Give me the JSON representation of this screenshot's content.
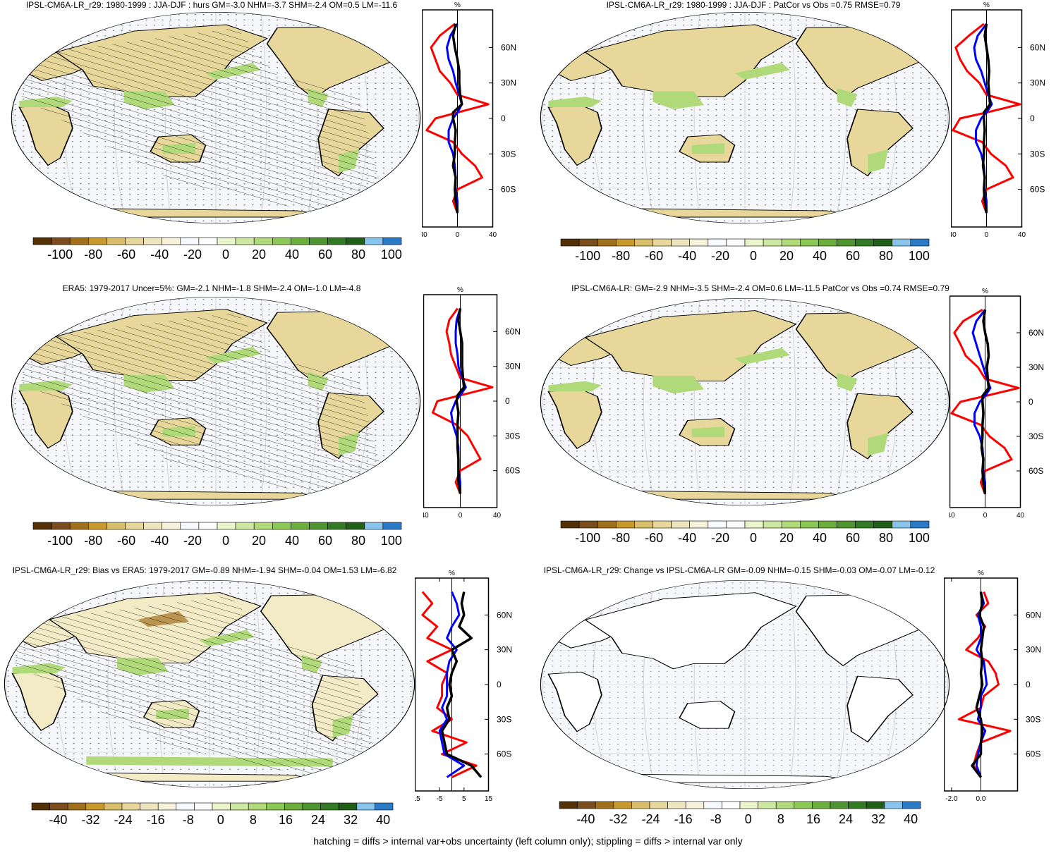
{
  "colors": {
    "palette": [
      "#543005",
      "#7a4e1c",
      "#a0701d",
      "#c89a2e",
      "#d9bf6b",
      "#e7d79a",
      "#efe6bf",
      "#f6f1da",
      "#f7f8fd",
      "#ffffff",
      "#eaf5cc",
      "#cde8a0",
      "#b0d97a",
      "#8cc856",
      "#6aae3c",
      "#4e9430",
      "#327a24",
      "#1f5f18",
      "#87c4ee",
      "#2b7bc8"
    ],
    "land_dry": "#e7d79a",
    "land_wet": "#b0d97a",
    "ocean": "#f6f7fb",
    "zonal_red": "#ff0000",
    "zonal_blue": "#0000ff",
    "zonal_black": "#000000"
  },
  "footer": "hatching = diffs > internal var+obs uncertainty (left column only); stippling = diffs > internal var only",
  "panels": [
    {
      "title": "IPSL-CM6A-LR_r29: 1980-1999 : JJA-DJF : hurs GM=-3.0 NHM=-3.7 SHM=-2.4 OM=0.5 LM=-11.6",
      "cbar_labels": [
        "-100",
        "-80",
        "-60",
        "-40",
        "-20",
        "0",
        "20",
        "40",
        "60",
        "80",
        "100"
      ],
      "side_x_ticks": [
        "-40",
        "0",
        "40"
      ],
      "side_unit": "%",
      "lat_labels": [
        "60N",
        "30N",
        "0",
        "30S",
        "60S"
      ],
      "hatching": true
    },
    {
      "title": "IPSL-CM6A-LR_r29: 1980-1999 : JJA-DJF : PatCor vs Obs =0.75 RMSE=0.79",
      "cbar_labels": [
        "-100",
        "-80",
        "-60",
        "-40",
        "-20",
        "0",
        "20",
        "40",
        "60",
        "80",
        "100"
      ],
      "side_x_ticks": [
        "-40",
        "0",
        "40"
      ],
      "side_unit": "%",
      "lat_labels": [
        "60N",
        "30N",
        "0",
        "30S",
        "60S"
      ],
      "hatching": false
    },
    {
      "title": "ERA5: 1979-2017 Uncer=5%: GM=-2.1 NHM=-1.8 SHM=-2.4 OM=-1.0 LM=-4.8",
      "cbar_labels": [
        "-100",
        "-80",
        "-60",
        "-40",
        "-20",
        "0",
        "20",
        "40",
        "60",
        "80",
        "100"
      ],
      "side_x_ticks": [
        "-40",
        "0",
        "40"
      ],
      "side_unit": "%",
      "lat_labels": [
        "60N",
        "30N",
        "0",
        "30S",
        "60S"
      ],
      "hatching": true
    },
    {
      "title": "IPSL-CM6A-LR: GM=-2.9 NHM=-3.5 SHM=-2.4 OM=0.6 LM=-11.5 PatCor vs Obs =0.74 RMSE=0.79",
      "cbar_labels": [
        "-100",
        "-80",
        "-60",
        "-40",
        "-20",
        "0",
        "20",
        "40",
        "60",
        "80",
        "100"
      ],
      "side_x_ticks": [
        "-40",
        "0",
        "40"
      ],
      "side_unit": "%",
      "lat_labels": [
        "60N",
        "30N",
        "0",
        "30S",
        "60S"
      ],
      "hatching": false
    },
    {
      "title": "IPSL-CM6A-LR_r29: Bias vs ERA5: 1979-2017 GM=-0.89 NHM=-1.94 SHM=-0.04 OM=1.53 LM=-6.82",
      "cbar_labels": [
        "-40",
        "-32",
        "-24",
        "-16",
        "-8",
        "0",
        "8",
        "16",
        "24",
        "32",
        "40"
      ],
      "side_x_ticks": [
        "-15",
        "-5",
        "5",
        "15"
      ],
      "side_unit": "%",
      "lat_labels": [
        "60N",
        "30N",
        "0",
        "30S",
        "60S"
      ],
      "hatching": true
    },
    {
      "title": "IPSL-CM6A-LR_r29: Change vs IPSL-CM6A-LR GM=-0.09 NHM=-0.15 SHM=-0.03 OM=-0.07 LM=-0.12",
      "cbar_labels": [
        "-40",
        "-32",
        "-24",
        "-16",
        "-8",
        "0",
        "8",
        "16",
        "24",
        "32",
        "40"
      ],
      "side_x_ticks": [
        "-2.0",
        "0.0"
      ],
      "side_unit": "%",
      "lat_labels": [
        "60N",
        "30N",
        "0",
        "30S",
        "60S"
      ],
      "hatching": false
    }
  ],
  "chart_data": [
    {
      "type": "heatmap",
      "title": "IPSL-CM6A-LR_r29: 1980-1999 : JJA-DJF : hurs GM=-3.0 NHM=-3.7 SHM=-2.4 OM=0.5 LM=-11.6",
      "colorbar_range": [
        -100,
        100
      ],
      "colorbar_ticks": [
        -100,
        -80,
        -60,
        -40,
        -20,
        0,
        20,
        40,
        60,
        80,
        100
      ],
      "zonal_mean": {
        "x_ticks": [
          -40,
          0,
          40
        ],
        "xlim": [
          -40,
          40
        ],
        "lat": [
          80,
          70,
          60,
          50,
          40,
          30,
          20,
          12,
          5,
          0,
          -10,
          -20,
          -30,
          -40,
          -50,
          -60,
          -70,
          -80
        ],
        "series": [
          {
            "values": [
              -3,
              -20,
              -30,
              -25,
              -20,
              -8,
              0,
              35,
              0,
              -25,
              -35,
              -5,
              5,
              20,
              28,
              0,
              -5,
              0
            ]
          },
          {
            "values": [
              0,
              -8,
              -12,
              -10,
              -5,
              -2,
              2,
              5,
              0,
              -5,
              -10,
              -10,
              -5,
              -3,
              -2,
              -2,
              0,
              0
            ]
          },
          {
            "values": [
              -2,
              -5,
              -3,
              0,
              2,
              2,
              3,
              5,
              -5,
              -5,
              -2,
              -3,
              -3,
              -5,
              -2,
              -3,
              -2,
              0
            ]
          }
        ]
      }
    },
    {
      "type": "heatmap",
      "title": "IPSL-CM6A-LR_r29: 1980-1999 : JJA-DJF : PatCor vs Obs =0.75 RMSE=0.79",
      "colorbar_range": [
        -100,
        100
      ],
      "colorbar_ticks": [
        -100,
        -80,
        -60,
        -40,
        -20,
        0,
        20,
        40,
        60,
        80,
        100
      ],
      "zonal_mean": {
        "x_ticks": [
          -40,
          0,
          40
        ],
        "xlim": [
          -40,
          40
        ],
        "lat": [
          80,
          70,
          60,
          50,
          40,
          30,
          20,
          12,
          5,
          0,
          -10,
          -20,
          -30,
          -40,
          -50,
          -60,
          -70,
          -80
        ],
        "series": [
          {
            "values": [
              -3,
              -20,
              -35,
              -30,
              -22,
              -8,
              0,
              38,
              0,
              -30,
              -38,
              -5,
              5,
              22,
              30,
              0,
              -5,
              0
            ]
          },
          {
            "values": [
              0,
              -10,
              -14,
              -12,
              -6,
              -2,
              2,
              6,
              0,
              -6,
              -12,
              -12,
              -6,
              -3,
              -2,
              -2,
              0,
              0
            ]
          },
          {
            "values": [
              0,
              -2,
              0,
              2,
              3,
              2,
              3,
              4,
              -3,
              -3,
              -2,
              -3,
              -3,
              -4,
              -2,
              -3,
              -2,
              0
            ]
          }
        ]
      }
    },
    {
      "type": "heatmap",
      "title": "ERA5: 1979-2017 Uncer=5%: GM=-2.1 NHM=-1.8 SHM=-2.4 OM=-1.0 LM=-4.8",
      "colorbar_range": [
        -100,
        100
      ],
      "colorbar_ticks": [
        -100,
        -80,
        -60,
        -40,
        -20,
        0,
        20,
        40,
        60,
        80,
        100
      ],
      "zonal_mean": {
        "x_ticks": [
          -40,
          0,
          40
        ],
        "xlim": [
          -40,
          40
        ],
        "lat": [
          80,
          70,
          60,
          50,
          40,
          30,
          20,
          12,
          5,
          0,
          -10,
          -20,
          -30,
          -40,
          -50,
          -60,
          -70,
          -80
        ],
        "series": [
          {
            "values": [
              -3,
              -12,
              -15,
              -12,
              -10,
              -5,
              0,
              35,
              0,
              -25,
              -30,
              -5,
              8,
              15,
              22,
              0,
              -5,
              0
            ]
          },
          {
            "values": [
              0,
              -4,
              -5,
              -5,
              -3,
              -2,
              2,
              6,
              0,
              -5,
              -10,
              -8,
              -4,
              -2,
              -2,
              -2,
              0,
              0
            ]
          },
          {
            "values": [
              0,
              -2,
              0,
              2,
              2,
              2,
              3,
              4,
              -3,
              -4,
              -2,
              -3,
              -3,
              -3,
              -2,
              -2,
              -2,
              0
            ]
          }
        ]
      }
    },
    {
      "type": "heatmap",
      "title": "IPSL-CM6A-LR: GM=-2.9 NHM=-3.5 SHM=-2.4 OM=0.6 LM=-11.5 PatCor vs Obs =0.74 RMSE=0.79",
      "colorbar_range": [
        -100,
        100
      ],
      "colorbar_ticks": [
        -100,
        -80,
        -60,
        -40,
        -20,
        0,
        20,
        40,
        60,
        80,
        100
      ],
      "zonal_mean": {
        "x_ticks": [
          -40,
          0,
          40
        ],
        "xlim": [
          -40,
          40
        ],
        "lat": [
          80,
          70,
          60,
          50,
          40,
          30,
          20,
          12,
          5,
          0,
          -10,
          -20,
          -30,
          -40,
          -50,
          -60,
          -70,
          -80
        ],
        "series": [
          {
            "values": [
              -3,
              -25,
              -35,
              -28,
              -22,
              -8,
              0,
              38,
              0,
              -28,
              -38,
              -5,
              5,
              22,
              30,
              0,
              -5,
              0
            ]
          },
          {
            "values": [
              0,
              -10,
              -14,
              -10,
              -6,
              -2,
              2,
              6,
              0,
              -6,
              -12,
              -12,
              -6,
              -3,
              -2,
              -2,
              0,
              0
            ]
          },
          {
            "values": [
              0,
              -2,
              0,
              3,
              4,
              2,
              3,
              4,
              -3,
              -3,
              -2,
              -3,
              -3,
              -4,
              -2,
              -3,
              -2,
              0
            ]
          }
        ]
      }
    },
    {
      "type": "heatmap",
      "title": "IPSL-CM6A-LR_r29: Bias vs ERA5: 1979-2017 GM=-0.89 NHM=-1.94 SHM=-0.04 OM=1.53 LM=-6.82",
      "colorbar_range": [
        -40,
        40
      ],
      "colorbar_ticks": [
        -40,
        -32,
        -24,
        -16,
        -8,
        0,
        8,
        16,
        24,
        32,
        40
      ],
      "zonal_mean": {
        "x_ticks": [
          -15,
          -5,
          5,
          15
        ],
        "xlim": [
          -15,
          15
        ],
        "lat": [
          80,
          70,
          60,
          50,
          40,
          30,
          20,
          10,
          0,
          -10,
          -20,
          -30,
          -40,
          -50,
          -60,
          -70,
          -80
        ],
        "series": [
          {
            "values": [
              -12,
              -8,
              -12,
              -6,
              -10,
              0,
              -10,
              -2,
              -4,
              -4,
              -6,
              0,
              -8,
              6,
              -4,
              10,
              0
            ]
          },
          {
            "values": [
              0,
              2,
              3,
              0,
              -2,
              2,
              -1,
              -2,
              -2,
              -2,
              -4,
              -2,
              -5,
              -4,
              -3,
              5,
              -2
            ]
          },
          {
            "values": [
              5,
              4,
              5,
              3,
              8,
              0,
              2,
              0,
              -1,
              0,
              -2,
              -1,
              -4,
              -3,
              -2,
              8,
              12
            ]
          }
        ]
      }
    },
    {
      "type": "heatmap",
      "title": "IPSL-CM6A-LR_r29: Change vs IPSL-CM6A-LR GM=-0.09 NHM=-0.15 SHM=-0.03 OM=-0.07 LM=-0.12",
      "colorbar_range": [
        -40,
        40
      ],
      "colorbar_ticks": [
        -40,
        -32,
        -24,
        -16,
        -8,
        0,
        8,
        16,
        24,
        32,
        40
      ],
      "zonal_mean": {
        "x_ticks": [
          -2.0,
          0.0
        ],
        "xlim": [
          -2.5,
          2.5
        ],
        "lat": [
          80,
          70,
          60,
          50,
          40,
          30,
          20,
          10,
          0,
          -10,
          -20,
          -30,
          -40,
          -50,
          -60,
          -70,
          -80
        ],
        "series": [
          {
            "values": [
              0.2,
              0.5,
              -0.3,
              0.3,
              -0.2,
              -1.0,
              0.5,
              1.0,
              1.2,
              0.2,
              0,
              -1.5,
              2.0,
              0,
              -0.3,
              -0.5,
              0
            ]
          },
          {
            "values": [
              0,
              0.2,
              -0.2,
              0,
              0,
              -0.3,
              0.2,
              0.3,
              0.4,
              0,
              0,
              -0.2,
              0.3,
              0,
              -0.2,
              -0.3,
              0
            ]
          },
          {
            "values": [
              0,
              0.1,
              -0.1,
              0.2,
              0.1,
              0,
              0.1,
              0,
              0.1,
              -0.1,
              -0.3,
              0,
              0.1,
              0,
              0,
              -0.6,
              0
            ]
          }
        ]
      }
    }
  ]
}
